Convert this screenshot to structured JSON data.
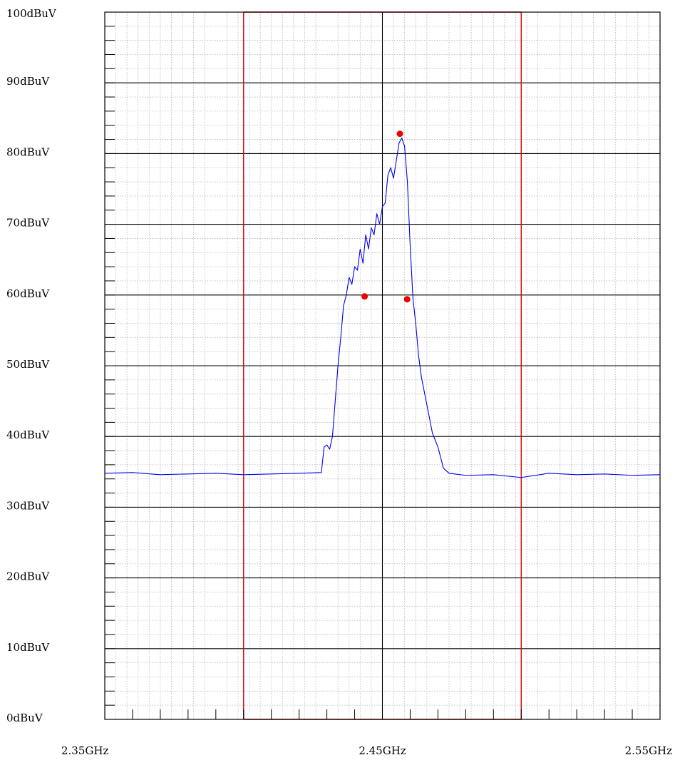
{
  "chart_data": {
    "type": "line",
    "title": "",
    "xlabel": "",
    "ylabel": "",
    "xlim": [
      2.35,
      2.55
    ],
    "ylim": [
      0,
      100
    ],
    "x_unit": "GHz",
    "y_unit": "dBuV",
    "x_tick_labels": [
      "2.35GHz",
      "2.45GHz",
      "2.55GHz"
    ],
    "x_tick_values": [
      2.35,
      2.45,
      2.55
    ],
    "y_tick_labels": [
      "100dBuV",
      "90dBuV",
      "80dBuV",
      "70dBuV",
      "60dBuV",
      "50dBuV",
      "40dBuV",
      "30dBuV",
      "20dBuV",
      "10dBuV",
      "0dBuV"
    ],
    "y_tick_values": [
      100,
      90,
      80,
      70,
      60,
      50,
      40,
      30,
      20,
      10,
      0
    ],
    "grid": true,
    "band_lines_ghz": [
      2.4,
      2.5
    ],
    "series": [
      {
        "color": "#0000ee",
        "x": [
          2.35,
          2.36,
          2.37,
          2.38,
          2.39,
          2.4,
          2.41,
          2.42,
          2.428,
          2.429,
          2.43,
          2.431,
          2.432,
          2.433,
          2.434,
          2.435,
          2.436,
          2.437,
          2.438,
          2.439,
          2.44,
          2.441,
          2.442,
          2.443,
          2.444,
          2.445,
          2.446,
          2.447,
          2.448,
          2.449,
          2.45,
          2.451,
          2.452,
          2.453,
          2.454,
          2.455,
          2.456,
          2.457,
          2.458,
          2.459,
          2.46,
          2.461,
          2.462,
          2.463,
          2.464,
          2.465,
          2.466,
          2.467,
          2.468,
          2.469,
          2.47,
          2.471,
          2.472,
          2.474,
          2.476,
          2.48,
          2.49,
          2.5,
          2.51,
          2.52,
          2.53,
          2.54,
          2.55
        ],
        "y": [
          34.8,
          34.9,
          34.6,
          34.7,
          34.8,
          34.6,
          34.7,
          34.8,
          34.9,
          38.5,
          38.8,
          38.2,
          40.0,
          45.0,
          50.0,
          54.0,
          58.5,
          60.0,
          62.5,
          61.5,
          64.0,
          63.5,
          66.5,
          64.5,
          68.5,
          66.5,
          69.5,
          68.5,
          71.5,
          70.0,
          72.5,
          73.0,
          77.0,
          78.0,
          76.5,
          79.0,
          81.5,
          82.2,
          81.0,
          76.0,
          67.0,
          59.5,
          56.0,
          51.5,
          48.5,
          46.5,
          44.5,
          42.5,
          40.5,
          39.5,
          38.5,
          37.0,
          35.5,
          34.8,
          34.7,
          34.5,
          34.6,
          34.2,
          34.8,
          34.6,
          34.7,
          34.5,
          34.6
        ]
      }
    ],
    "markers": [
      {
        "x": 2.4436,
        "y": 59.8
      },
      {
        "x": 2.4563,
        "y": 82.8
      },
      {
        "x": 2.4589,
        "y": 59.4
      }
    ]
  }
}
